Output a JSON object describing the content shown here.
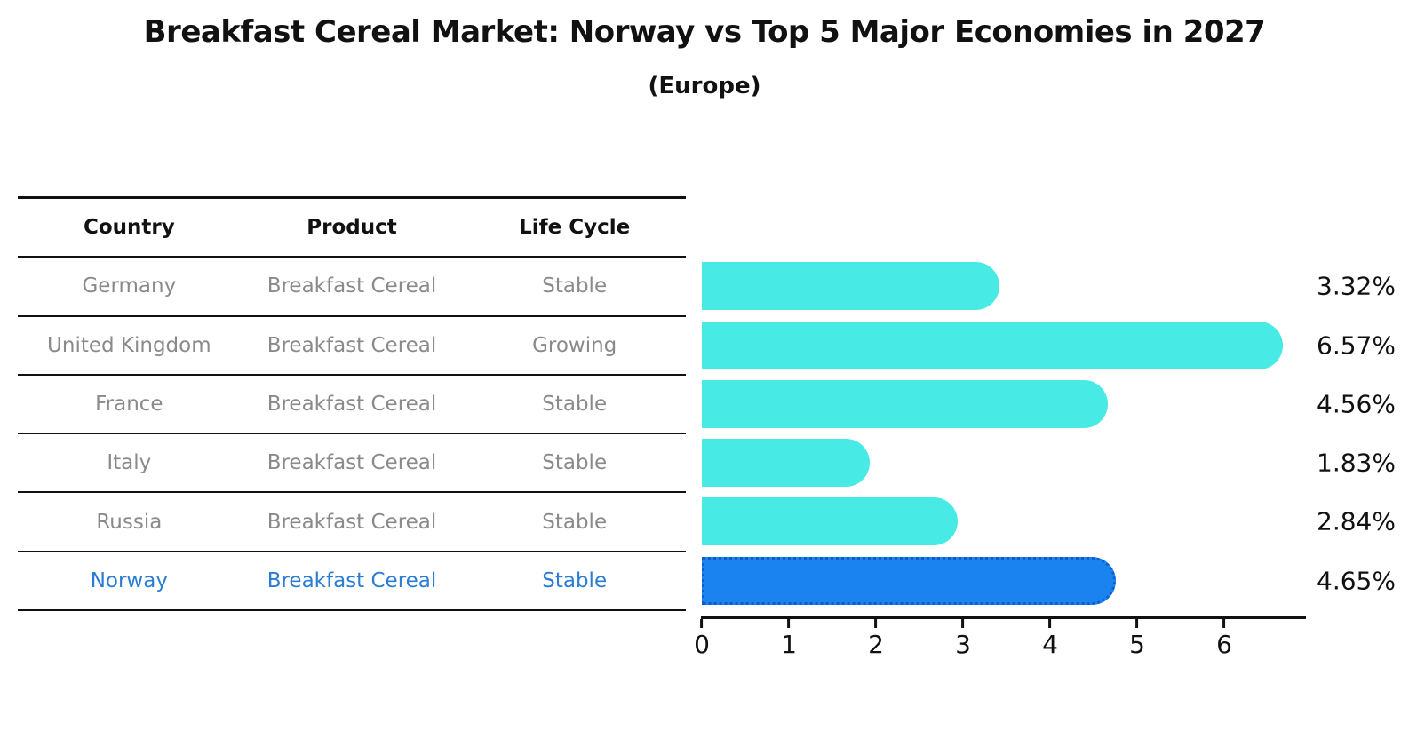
{
  "title": "Breakfast Cereal Market: Norway vs Top 5 Major Economies in 2027",
  "subtitle": "(Europe)",
  "table": {
    "headers": [
      "Country",
      "Product",
      "Life Cycle"
    ],
    "rows": [
      {
        "country": "Germany",
        "product": "Breakfast Cereal",
        "life_cycle": "Stable"
      },
      {
        "country": "United Kingdom",
        "product": "Breakfast Cereal",
        "life_cycle": "Growing"
      },
      {
        "country": "France",
        "product": "Breakfast Cereal",
        "life_cycle": "Stable"
      },
      {
        "country": "Italy",
        "product": "Breakfast Cereal",
        "life_cycle": "Stable"
      },
      {
        "country": "Russia",
        "product": "Breakfast Cereal",
        "life_cycle": "Stable"
      },
      {
        "country": "Norway",
        "product": "Breakfast Cereal",
        "life_cycle": "Stable"
      }
    ],
    "highlight_row": "Norway"
  },
  "chart_data": {
    "type": "bar",
    "orientation": "horizontal",
    "title": "Breakfast Cereal Market: Norway vs Top 5 Major Economies in 2027",
    "subtitle": "(Europe)",
    "categories": [
      "Germany",
      "United Kingdom",
      "France",
      "Italy",
      "Russia",
      "Norway"
    ],
    "values": [
      3.32,
      6.57,
      4.56,
      1.83,
      2.84,
      4.65
    ],
    "value_labels": [
      "3.32%",
      "6.57%",
      "4.56%",
      "1.83%",
      "2.84%",
      "4.65%"
    ],
    "x_ticks": [
      "0",
      "1",
      "2",
      "3",
      "4",
      "5",
      "6"
    ],
    "xlim": [
      0,
      6.9
    ],
    "grid": false,
    "legend": false,
    "bar_color": "#47eae4",
    "highlight_index": 5,
    "highlight_bar_color": "#1a83f0",
    "highlight_border_color": "#0d5ecb",
    "highlight_text_color": "#2b7cd3",
    "text_color": "#111111",
    "muted_text_color": "#8a8a8a"
  }
}
